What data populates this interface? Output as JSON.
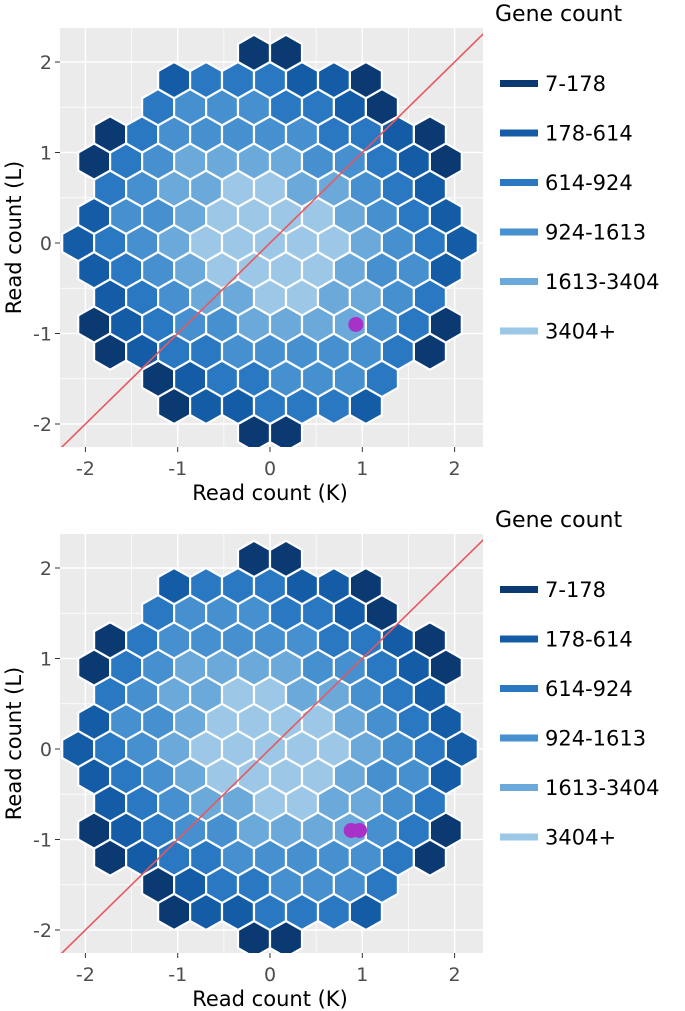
{
  "chart_data": [
    {
      "type": "hexbin",
      "xlabel": "Read count (K)",
      "ylabel": "Read count (L)",
      "xlim": [
        -2.25,
        2.25
      ],
      "ylim": [
        -2.25,
        2.4
      ],
      "xticks": [
        "-2",
        "-1",
        "0",
        "1",
        "2"
      ],
      "yticks": [
        "-2",
        "-1",
        "0",
        "1",
        "2"
      ],
      "legend_title": "Gene count",
      "legend_position": "right",
      "legend": [
        {
          "label": "7-178",
          "color": "#0b3a73"
        },
        {
          "label": "178-614",
          "color": "#145ca6"
        },
        {
          "label": "614-924",
          "color": "#2a78c2"
        },
        {
          "label": "924-1613",
          "color": "#4690cf"
        },
        {
          "label": "1613-3404",
          "color": "#6aa9da"
        },
        {
          "label": "3404+",
          "color": "#9cc7e6"
        }
      ],
      "reference_line": {
        "slope": 1,
        "intercept": 0,
        "color": "#e8585e"
      },
      "highlight_points": [
        {
          "x": 0.93,
          "y": -0.9
        }
      ],
      "highlight_color": "#a832c8",
      "hex_radius": 0.2,
      "grid": true
    },
    {
      "type": "hexbin",
      "xlabel": "Read count (K)",
      "ylabel": "Read count (L)",
      "xlim": [
        -2.25,
        2.25
      ],
      "ylim": [
        -2.25,
        2.4
      ],
      "xticks": [
        "-2",
        "-1",
        "0",
        "1",
        "2"
      ],
      "yticks": [
        "-2",
        "-1",
        "0",
        "1",
        "2"
      ],
      "legend_title": "Gene count",
      "legend_position": "right",
      "legend": [
        {
          "label": "7-178",
          "color": "#0b3a73"
        },
        {
          "label": "178-614",
          "color": "#145ca6"
        },
        {
          "label": "614-924",
          "color": "#2a78c2"
        },
        {
          "label": "924-1613",
          "color": "#4690cf"
        },
        {
          "label": "1613-3404",
          "color": "#6aa9da"
        },
        {
          "label": "3404+",
          "color": "#9cc7e6"
        }
      ],
      "reference_line": {
        "slope": 1,
        "intercept": 0,
        "color": "#e8585e"
      },
      "highlight_points": [
        {
          "x": 0.88,
          "y": -0.9
        },
        {
          "x": 0.97,
          "y": -0.9
        }
      ],
      "highlight_color": "#a832c8",
      "hex_radius": 0.2,
      "grid": true
    }
  ]
}
